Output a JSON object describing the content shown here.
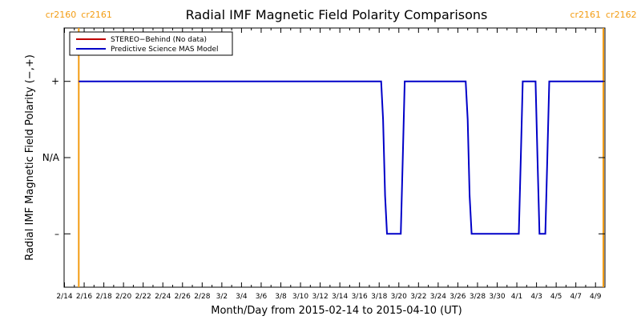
{
  "chart_data": {
    "type": "line",
    "title": "Radial IMF Magnetic Field Polarity Comparisons",
    "xlabel": "Month/Day from 2015-02-14 to 2015-04-10 (UT)",
    "ylabel": "Radial IMF Magnetic Field Polarity (−,+)",
    "x_range_days": [
      0,
      55
    ],
    "y_range": [
      -1.7,
      1.7
    ],
    "y_ticks": [
      {
        "value": 1,
        "label": "+"
      },
      {
        "value": 0,
        "label": "N/A"
      },
      {
        "value": -1,
        "label": "–"
      }
    ],
    "x_ticks": [
      "2/14",
      "2/16",
      "2/18",
      "2/20",
      "2/22",
      "2/24",
      "2/26",
      "2/28",
      "3/2",
      "3/4",
      "3/6",
      "3/8",
      "3/10",
      "3/12",
      "3/14",
      "3/16",
      "3/18",
      "3/20",
      "3/22",
      "3/24",
      "3/26",
      "3/28",
      "3/30",
      "4/1",
      "4/3",
      "4/5",
      "4/7",
      "4/9"
    ],
    "carrington_markers": [
      {
        "day": 1.45,
        "left_label": "cr2160",
        "right_label": "cr2161"
      },
      {
        "day": 54.8,
        "left_label": "cr2161",
        "right_label": "cr2162"
      }
    ],
    "legend": {
      "placement": "top-left",
      "entries": [
        {
          "name": "STEREO−Behind (No data)",
          "color": "#c00000"
        },
        {
          "name": "Predictive Science MAS Model",
          "color": "#0000c8"
        }
      ]
    },
    "series": [
      {
        "name": "Predictive Science MAS Model",
        "color": "#0000c8",
        "points": [
          [
            1.45,
            1
          ],
          [
            32.2,
            1
          ],
          [
            32.4,
            0.5
          ],
          [
            32.6,
            -0.5
          ],
          [
            32.8,
            -1
          ],
          [
            34.2,
            -1
          ],
          [
            34.4,
            0
          ],
          [
            34.6,
            1
          ],
          [
            40.8,
            1
          ],
          [
            41.0,
            0.5
          ],
          [
            41.2,
            -0.5
          ],
          [
            41.4,
            -1
          ],
          [
            46.2,
            -1
          ],
          [
            46.4,
            0
          ],
          [
            46.6,
            1
          ],
          [
            47.9,
            1
          ],
          [
            48.1,
            0
          ],
          [
            48.3,
            -1
          ],
          [
            48.9,
            -1
          ],
          [
            49.1,
            0
          ],
          [
            49.3,
            1
          ],
          [
            54.8,
            1
          ]
        ]
      }
    ],
    "series_colors": {
      "axis": "#000000",
      "marker": "#f39c12"
    }
  }
}
